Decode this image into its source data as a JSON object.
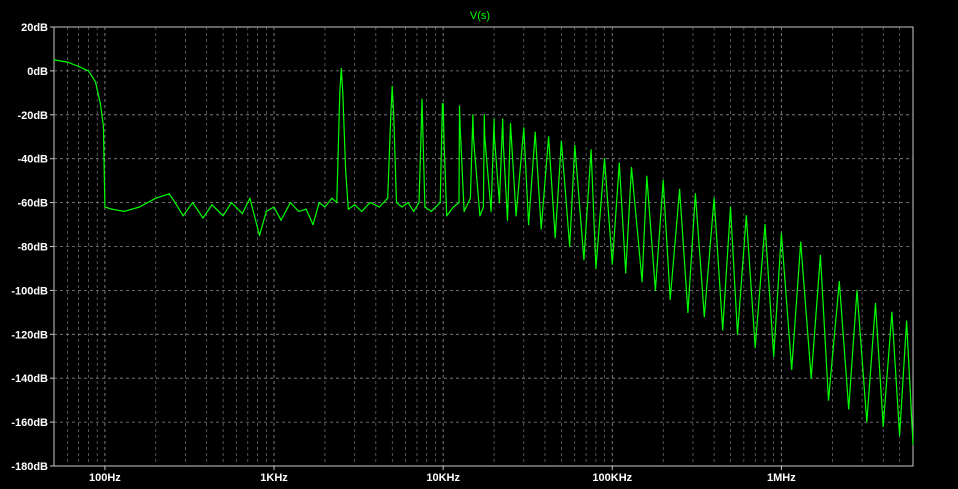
{
  "colors": {
    "background": "#000000",
    "grid": "#8a8a8a",
    "axis_text": "#ffffff",
    "trace": "#00ff00",
    "frame": "#c8c8c8"
  },
  "chart_data": {
    "type": "line",
    "title": "V(s)",
    "x_scale": "log",
    "xlim": [
      50,
      6000000
    ],
    "ylim": [
      -180,
      20
    ],
    "x_ticks": [
      {
        "value": 100,
        "label": "100Hz"
      },
      {
        "value": 1000,
        "label": "1KHz"
      },
      {
        "value": 10000,
        "label": "10KHz"
      },
      {
        "value": 100000,
        "label": "100KHz"
      },
      {
        "value": 1000000,
        "label": "1MHz"
      }
    ],
    "y_ticks": [
      {
        "value": 20,
        "label": "20dB"
      },
      {
        "value": 0,
        "label": "0dB"
      },
      {
        "value": -20,
        "label": "-20dB"
      },
      {
        "value": -40,
        "label": "-40dB"
      },
      {
        "value": -60,
        "label": "-60dB"
      },
      {
        "value": -80,
        "label": "-80dB"
      },
      {
        "value": -100,
        "label": "-100dB"
      },
      {
        "value": -120,
        "label": "-120dB"
      },
      {
        "value": -140,
        "label": "-140dB"
      },
      {
        "value": -160,
        "label": "-160dB"
      },
      {
        "value": -180,
        "label": "-180dB"
      }
    ],
    "grid": true,
    "series": [
      {
        "name": "V(s)",
        "points": [
          [
            50,
            5
          ],
          [
            60,
            4
          ],
          [
            70,
            2
          ],
          [
            80,
            0
          ],
          [
            88,
            -5
          ],
          [
            94,
            -15
          ],
          [
            98,
            -25
          ],
          [
            100,
            -62
          ],
          [
            110,
            -63
          ],
          [
            130,
            -64
          ],
          [
            160,
            -62
          ],
          [
            200,
            -58
          ],
          [
            240,
            -56
          ],
          [
            260,
            -60
          ],
          [
            290,
            -66
          ],
          [
            330,
            -60
          ],
          [
            380,
            -67
          ],
          [
            430,
            -61
          ],
          [
            500,
            -66
          ],
          [
            560,
            -60
          ],
          [
            650,
            -65
          ],
          [
            720,
            -58
          ],
          [
            820,
            -75
          ],
          [
            900,
            -64
          ],
          [
            1000,
            -62
          ],
          [
            1100,
            -68
          ],
          [
            1250,
            -60
          ],
          [
            1400,
            -64
          ],
          [
            1550,
            -63
          ],
          [
            1700,
            -70
          ],
          [
            1850,
            -60
          ],
          [
            2000,
            -62
          ],
          [
            2200,
            -58
          ],
          [
            2350,
            -60
          ],
          [
            2450,
            -10
          ],
          [
            2500,
            1
          ],
          [
            2550,
            -10
          ],
          [
            2650,
            -45
          ],
          [
            2750,
            -63
          ],
          [
            3000,
            -61
          ],
          [
            3300,
            -64
          ],
          [
            3700,
            -60
          ],
          [
            4200,
            -62
          ],
          [
            4700,
            -58
          ],
          [
            4900,
            -20
          ],
          [
            5000,
            -7
          ],
          [
            5100,
            -20
          ],
          [
            5300,
            -60
          ],
          [
            5700,
            -62
          ],
          [
            6200,
            -60
          ],
          [
            6700,
            -64
          ],
          [
            7200,
            -60
          ],
          [
            7400,
            -30
          ],
          [
            7500,
            -13
          ],
          [
            7600,
            -30
          ],
          [
            7800,
            -62
          ],
          [
            8500,
            -64
          ],
          [
            9600,
            -60
          ],
          [
            9900,
            -15
          ],
          [
            10000,
            -15
          ],
          [
            10100,
            -30
          ],
          [
            10500,
            -66
          ],
          [
            11500,
            -62
          ],
          [
            12400,
            -60
          ],
          [
            12500,
            -16
          ],
          [
            12600,
            -25
          ],
          [
            13300,
            -64
          ],
          [
            14500,
            -58
          ],
          [
            15000,
            -20
          ],
          [
            15100,
            -30
          ],
          [
            16500,
            -66
          ],
          [
            17300,
            -62
          ],
          [
            17500,
            -20
          ],
          [
            17600,
            -30
          ],
          [
            19200,
            -64
          ],
          [
            20000,
            -22
          ],
          [
            20100,
            -30
          ],
          [
            21500,
            -60
          ],
          [
            22500,
            -22
          ],
          [
            22700,
            -34
          ],
          [
            24000,
            -68
          ],
          [
            25000,
            -24
          ],
          [
            27000,
            -66
          ],
          [
            30000,
            -26
          ],
          [
            32000,
            -70
          ],
          [
            35000,
            -28
          ],
          [
            38000,
            -72
          ],
          [
            42000,
            -30
          ],
          [
            46000,
            -76
          ],
          [
            50000,
            -32
          ],
          [
            56000,
            -80
          ],
          [
            60000,
            -34
          ],
          [
            68000,
            -86
          ],
          [
            75000,
            -36
          ],
          [
            80000,
            -90
          ],
          [
            90000,
            -40
          ],
          [
            100000,
            -88
          ],
          [
            110000,
            -42
          ],
          [
            120000,
            -92
          ],
          [
            130000,
            -44
          ],
          [
            150000,
            -96
          ],
          [
            160000,
            -48
          ],
          [
            180000,
            -100
          ],
          [
            200000,
            -50
          ],
          [
            220000,
            -104
          ],
          [
            250000,
            -54
          ],
          [
            280000,
            -110
          ],
          [
            310000,
            -56
          ],
          [
            350000,
            -112
          ],
          [
            400000,
            -58
          ],
          [
            450000,
            -118
          ],
          [
            500000,
            -62
          ],
          [
            550000,
            -120
          ],
          [
            620000,
            -66
          ],
          [
            700000,
            -126
          ],
          [
            800000,
            -70
          ],
          [
            900000,
            -130
          ],
          [
            1000000,
            -74
          ],
          [
            1150000,
            -136
          ],
          [
            1300000,
            -78
          ],
          [
            1500000,
            -140
          ],
          [
            1700000,
            -84
          ],
          [
            1900000,
            -150
          ],
          [
            2200000,
            -96
          ],
          [
            2500000,
            -154
          ],
          [
            2800000,
            -100
          ],
          [
            3200000,
            -160
          ],
          [
            3600000,
            -106
          ],
          [
            4000000,
            -162
          ],
          [
            4500000,
            -110
          ],
          [
            5000000,
            -166
          ],
          [
            5500000,
            -114
          ],
          [
            6000000,
            -170
          ]
        ]
      }
    ]
  }
}
